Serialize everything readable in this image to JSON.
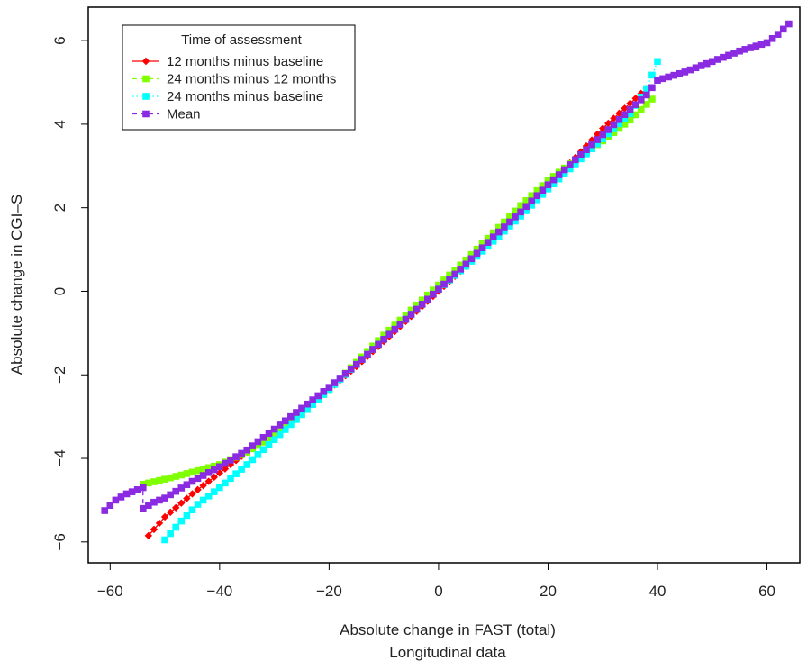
{
  "chart_data": {
    "type": "scatter",
    "xlabel": "Absolute change in FAST (total)",
    "xlabel2": "Longitudinal data",
    "ylabel": "Absolute change in CGI–S",
    "xlim": [
      -64,
      66
    ],
    "ylim": [
      -6.5,
      6.8
    ],
    "xticks": [
      -60,
      -40,
      -20,
      0,
      20,
      40,
      60
    ],
    "yticks": [
      -6,
      -4,
      -2,
      0,
      2,
      4,
      6
    ],
    "xtick_labels": [
      "−60",
      "−40",
      "−20",
      "0",
      "20",
      "40",
      "60"
    ],
    "ytick_labels": [
      "−6",
      "−4",
      "−2",
      "0",
      "2",
      "4",
      "6"
    ],
    "grid": false,
    "legend": {
      "title": "Time of assessment",
      "position": "top-left"
    },
    "series": [
      {
        "name": "12 months minus baseline",
        "color": "#ff0000",
        "marker": "diamond",
        "line": "solid",
        "x_range": [
          -53,
          38
        ],
        "x": [
          -53,
          -50,
          -45,
          -40,
          -35,
          -30,
          -25,
          -20,
          -15,
          -10,
          -5,
          0,
          5,
          10,
          15,
          20,
          25,
          30,
          35,
          38
        ],
        "y": [
          -5.85,
          -5.4,
          -4.85,
          -4.35,
          -3.85,
          -3.35,
          -2.85,
          -2.35,
          -1.8,
          -1.2,
          -0.6,
          0.0,
          0.6,
          1.25,
          1.9,
          2.55,
          3.2,
          3.9,
          4.5,
          4.85
        ]
      },
      {
        "name": "24 months minus 12 months",
        "color": "#7fff00",
        "marker": "square",
        "line": "dashed",
        "x_range": [
          -54,
          39
        ],
        "x": [
          -54,
          -50,
          -45,
          -40,
          -35,
          -30,
          -25,
          -20,
          -15,
          -10,
          -5,
          0,
          5,
          10,
          15,
          20,
          25,
          30,
          35,
          39
        ],
        "y": [
          -4.62,
          -4.5,
          -4.33,
          -4.15,
          -3.85,
          -3.45,
          -2.95,
          -2.35,
          -1.7,
          -1.05,
          -0.45,
          0.15,
          0.75,
          1.4,
          2.05,
          2.65,
          3.15,
          3.6,
          4.1,
          4.6
        ]
      },
      {
        "name": "24 months minus baseline",
        "color": "#00ffff",
        "marker": "square",
        "line": "dotted",
        "x_range": [
          -50,
          40
        ],
        "x": [
          -50,
          -47,
          -44,
          -40,
          -35,
          -30,
          -25,
          -20,
          -15,
          -10,
          -5,
          0,
          5,
          10,
          15,
          20,
          25,
          30,
          35,
          38,
          40
        ],
        "y": [
          -5.95,
          -5.5,
          -5.1,
          -4.7,
          -4.15,
          -3.55,
          -2.95,
          -2.35,
          -1.75,
          -1.15,
          -0.55,
          0.05,
          0.6,
          1.2,
          1.8,
          2.45,
          3.05,
          3.65,
          4.25,
          4.85,
          5.5
        ]
      },
      {
        "name": "Mean",
        "color": "#8a2be2",
        "marker": "square",
        "line": "dashed",
        "x_range": [
          -61,
          64
        ],
        "x": [
          -61,
          -59,
          -57,
          -55,
          -54,
          -54,
          -52,
          -50,
          -45,
          -40,
          -35,
          -30,
          -25,
          -20,
          -15,
          -10,
          -5,
          0,
          5,
          10,
          15,
          20,
          25,
          30,
          35,
          38,
          40,
          45,
          50,
          55,
          60,
          62,
          64
        ],
        "y": [
          -5.25,
          -5.0,
          -4.85,
          -4.75,
          -4.7,
          -5.2,
          -5.05,
          -4.95,
          -4.55,
          -4.2,
          -3.8,
          -3.3,
          -2.8,
          -2.3,
          -1.75,
          -1.15,
          -0.55,
          0.05,
          0.65,
          1.3,
          1.9,
          2.55,
          3.15,
          3.75,
          4.35,
          4.7,
          5.05,
          5.25,
          5.5,
          5.75,
          5.95,
          6.15,
          6.4
        ]
      }
    ]
  }
}
